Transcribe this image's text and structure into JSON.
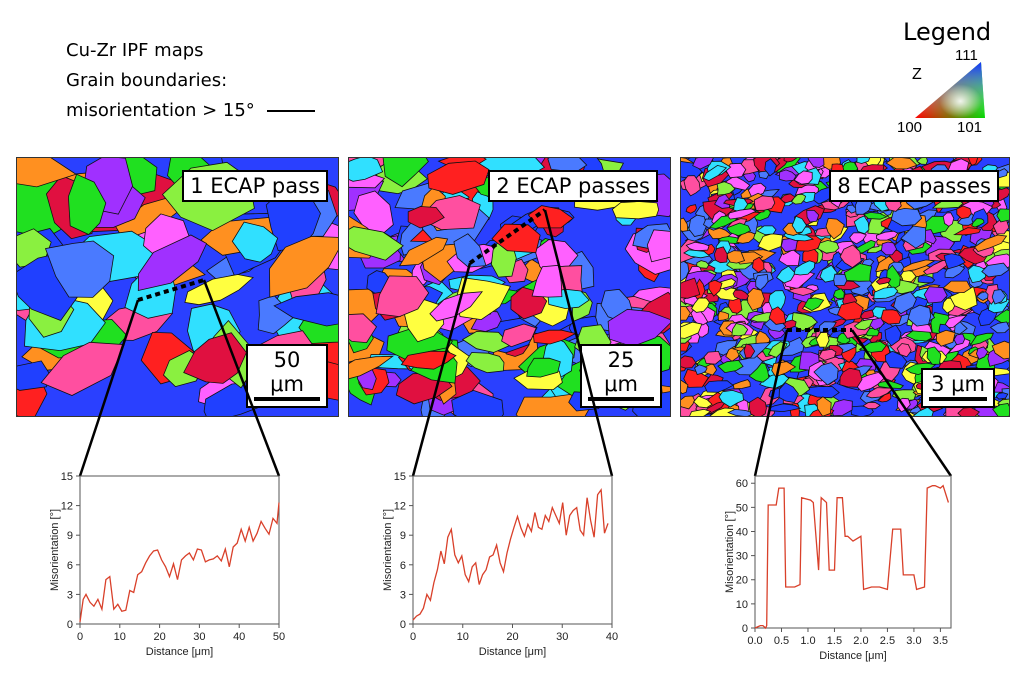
{
  "caption": {
    "line1": "Cu-Zr IPF maps",
    "line2": "Grain boundaries:",
    "line3": "misorientation > 15°"
  },
  "legend": {
    "title": "Legend",
    "axis": "Z",
    "corner_top": "111",
    "corner_left": "100",
    "corner_right": "101"
  },
  "maps": [
    {
      "label": "1 ECAP pass",
      "scale": "50 μm"
    },
    {
      "label": "2 ECAP passes",
      "scale": "25 μm"
    },
    {
      "label": "8 ECAP passes",
      "scale": "3 μm"
    }
  ],
  "chart_data": [
    {
      "type": "line",
      "xlabel": "Distance [μm]",
      "ylabel": "Misorientation [°]",
      "xlim": [
        0,
        50
      ],
      "ylim": [
        0,
        15
      ],
      "xticks": [
        0,
        10,
        20,
        30,
        40,
        50
      ],
      "yticks": [
        0,
        3,
        6,
        9,
        12,
        15
      ],
      "color": "#d9402a",
      "x": [
        0,
        0.8,
        1.5,
        2.5,
        3.5,
        4.5,
        5.5,
        6.5,
        7.5,
        8.5,
        9.5,
        10.5,
        11.5,
        12.5,
        13.5,
        14.5,
        15.5,
        16.5,
        17.5,
        18.5,
        19.5,
        20.5,
        21.5,
        22.5,
        23.5,
        24.5,
        25.5,
        26.5,
        27.5,
        28.5,
        29.5,
        30.5,
        31.5,
        32.5,
        33.5,
        34.5,
        35.5,
        36.5,
        37.5,
        38.5,
        39.5,
        40.5,
        41.5,
        42.5,
        43.5,
        44.5,
        45.5,
        46.5,
        47.5,
        48.5,
        49.5,
        50
      ],
      "y": [
        0.2,
        2.5,
        3.0,
        2.2,
        1.8,
        2.5,
        1.5,
        4.5,
        4.8,
        1.5,
        2.0,
        1.3,
        1.4,
        3.4,
        3.2,
        5.0,
        5.3,
        6.2,
        6.9,
        7.4,
        7.5,
        6.5,
        5.8,
        4.8,
        6.1,
        4.5,
        6.5,
        6.9,
        7.2,
        6.5,
        7.6,
        7.5,
        6.3,
        6.5,
        6.6,
        6.9,
        6.4,
        7.6,
        5.8,
        7.8,
        8.2,
        9.6,
        8.4,
        9.8,
        8.4,
        9.2,
        10.4,
        9.7,
        9.1,
        10.7,
        10.2,
        12.3
      ]
    },
    {
      "type": "line",
      "xlabel": "Distance [μm]",
      "ylabel": "Misorientation [°]",
      "xlim": [
        0,
        40
      ],
      "ylim": [
        0,
        15
      ],
      "xticks": [
        0,
        10,
        20,
        30,
        40
      ],
      "yticks": [
        0,
        3,
        6,
        9,
        12,
        15
      ],
      "color": "#d9402a",
      "x": [
        0,
        0.7,
        1.4,
        2.1,
        2.8,
        3.5,
        4.2,
        4.9,
        5.6,
        6.3,
        7.0,
        7.7,
        8.4,
        9.1,
        9.8,
        10.5,
        11.2,
        11.9,
        12.6,
        13.3,
        14.0,
        14.7,
        15.4,
        16.1,
        16.8,
        17.5,
        18.2,
        18.9,
        19.6,
        20.3,
        21.0,
        21.7,
        22.4,
        23.1,
        23.8,
        24.5,
        25.2,
        25.9,
        26.6,
        27.3,
        28.0,
        28.7,
        29.4,
        30.1,
        30.8,
        31.5,
        32.2,
        32.9,
        33.6,
        34.3,
        35.0,
        35.7,
        36.4,
        37.1,
        37.8,
        38.5,
        39.2
      ],
      "y": [
        0.4,
        0.8,
        1.0,
        1.6,
        3.0,
        2.4,
        4.2,
        5.5,
        7.4,
        6.1,
        8.8,
        9.6,
        7.0,
        6.2,
        6.9,
        5.0,
        4.3,
        5.8,
        6.2,
        4.0,
        5.0,
        5.5,
        6.8,
        7.0,
        8.0,
        6.2,
        5.3,
        7.2,
        8.6,
        9.8,
        10.9,
        9.7,
        8.9,
        10.1,
        9.4,
        11.3,
        9.8,
        9.6,
        11.0,
        10.4,
        11.8,
        11.0,
        10.2,
        12.3,
        9.0,
        11.0,
        11.5,
        11.8,
        9.5,
        9.0,
        12.8,
        10.5,
        8.8,
        13.1,
        13.6,
        9.2,
        10.2
      ]
    },
    {
      "type": "line",
      "xlabel": "Distance [μm]",
      "ylabel": "Misorientation [°]",
      "xlim": [
        0,
        3.7
      ],
      "ylim": [
        0,
        63
      ],
      "xticks": [
        0.0,
        0.5,
        1.0,
        1.5,
        2.0,
        2.5,
        3.0,
        3.5
      ],
      "yticks": [
        0,
        10,
        20,
        30,
        40,
        50,
        60
      ],
      "color": "#d9402a",
      "x": [
        0.0,
        0.1,
        0.15,
        0.2,
        0.22,
        0.25,
        0.4,
        0.45,
        0.55,
        0.58,
        0.75,
        0.85,
        0.88,
        1.05,
        1.1,
        1.2,
        1.25,
        1.35,
        1.4,
        1.5,
        1.55,
        1.65,
        1.7,
        1.75,
        1.85,
        2.0,
        2.05,
        2.2,
        2.35,
        2.5,
        2.6,
        2.75,
        2.8,
        3.0,
        3.05,
        3.2,
        3.25,
        3.35,
        3.4,
        3.5,
        3.55,
        3.65
      ],
      "y": [
        0,
        1,
        1,
        0,
        1,
        51,
        51,
        58,
        58,
        17,
        17,
        18,
        54,
        53,
        52,
        24,
        54,
        52,
        24,
        24,
        54,
        54,
        38,
        38,
        36,
        38,
        16,
        17,
        17,
        16,
        41,
        41,
        22,
        22,
        16,
        17,
        58,
        59,
        59,
        58,
        59,
        52
      ]
    }
  ]
}
